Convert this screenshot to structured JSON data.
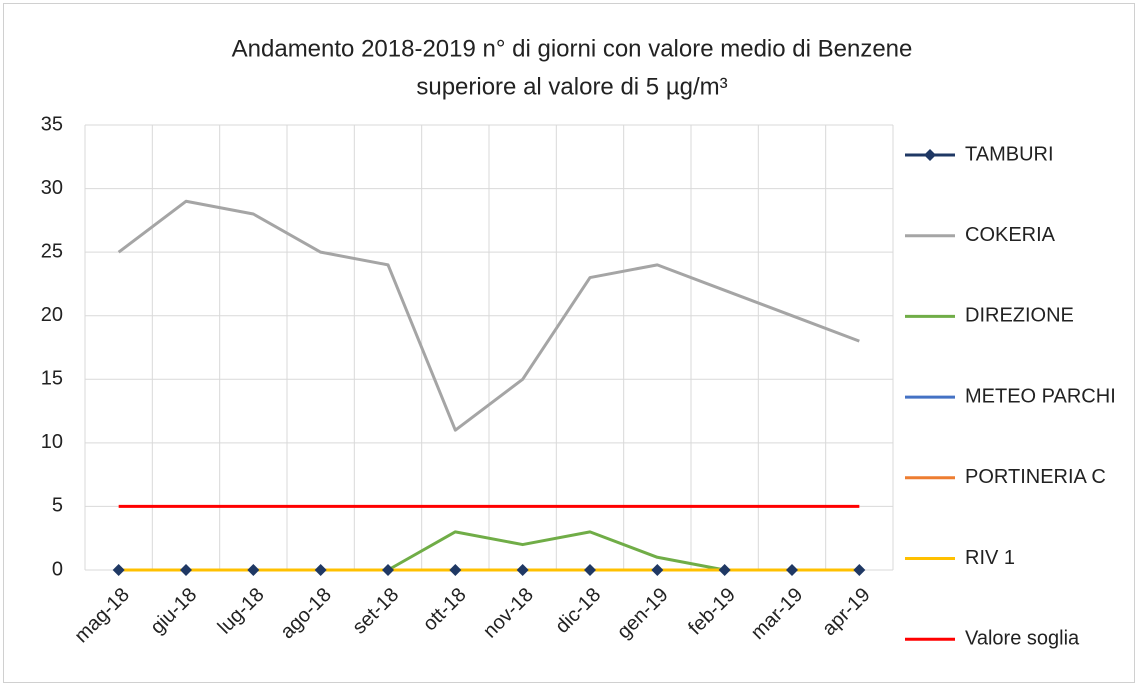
{
  "chart_data": {
    "type": "line",
    "title": [
      "Andamento 2018-2019 n° di giorni con valore medio di Benzene",
      "superiore al valore di 5 µg/m³"
    ],
    "categories": [
      "mag-18",
      "giu-18",
      "lug-18",
      "ago-18",
      "set-18",
      "ott-18",
      "nov-18",
      "dic-18",
      "gen-19",
      "feb-19",
      "mar-19",
      "apr-19"
    ],
    "series": [
      {
        "name": "TAMBURI",
        "color": "#1f3864",
        "marker": "diamond",
        "values": [
          0,
          0,
          0,
          0,
          0,
          0,
          0,
          0,
          0,
          0,
          0,
          0
        ]
      },
      {
        "name": "COKERIA",
        "color": "#a5a5a5",
        "values": [
          25,
          29,
          28,
          25,
          24,
          11,
          15,
          23,
          24,
          22,
          20,
          18
        ]
      },
      {
        "name": "DIREZIONE",
        "color": "#70ad47",
        "values": [
          0,
          0,
          0,
          0,
          0,
          3,
          2,
          3,
          1,
          0,
          0,
          0
        ]
      },
      {
        "name": "METEO PARCHI",
        "color": "#4472c4",
        "values": [
          0,
          0,
          0,
          0,
          0,
          0,
          0,
          0,
          0,
          0,
          0,
          0
        ]
      },
      {
        "name": "PORTINERIA C",
        "color": "#ed7d31",
        "values": [
          0,
          0,
          0,
          0,
          0,
          0,
          0,
          0,
          0,
          0,
          0,
          0
        ]
      },
      {
        "name": "RIV 1",
        "color": "#ffc000",
        "values": [
          0,
          0,
          0,
          0,
          0,
          0,
          0,
          0,
          0,
          0,
          0,
          0
        ]
      },
      {
        "name": "Valore soglia",
        "color": "#ff0000",
        "values": [
          5,
          5,
          5,
          5,
          5,
          5,
          5,
          5,
          5,
          5,
          5,
          5
        ]
      }
    ],
    "ylim": [
      0,
      35
    ],
    "yticks": [
      0,
      5,
      10,
      15,
      20,
      25,
      30,
      35
    ],
    "grid": true,
    "legend": "right"
  }
}
